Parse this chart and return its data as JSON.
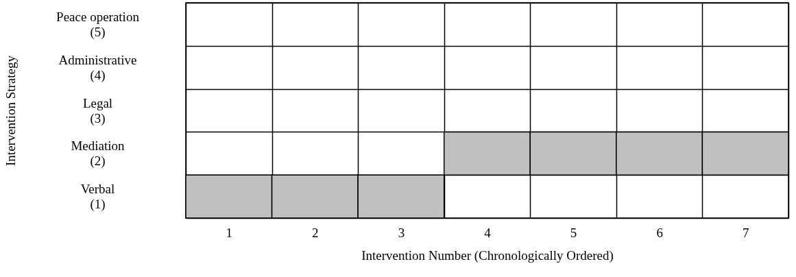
{
  "chart_data": {
    "type": "bar",
    "xlabel": "Intervention Number (Chronologically Ordered)",
    "ylabel": "Intervention Strategy",
    "categories": [
      "1",
      "2",
      "3",
      "4",
      "5",
      "6",
      "7"
    ],
    "values": [
      1,
      1,
      1,
      1,
      1,
      1,
      1
    ],
    "base": [
      0.5,
      0.5,
      0.5,
      1.5,
      1.5,
      1.5,
      1.5
    ],
    "color": "#c0c0c0",
    "ylim": [
      0.5,
      5.5
    ],
    "yticks": [
      {
        "value": 0.5,
        "label": null
      },
      {
        "value": 1,
        "label": "Verbal (1)"
      },
      {
        "value": 1.5,
        "label": null
      },
      {
        "value": 2,
        "label": "Mediation (2)"
      },
      {
        "value": 2.5,
        "label": null
      },
      {
        "value": 3,
        "label": "Legal (3)"
      },
      {
        "value": 3.5,
        "label": null
      },
      {
        "value": 4,
        "label": "Administrative (4)"
      },
      {
        "value": 4.5,
        "label": null
      },
      {
        "value": 5,
        "label": "Peace operation (5)"
      },
      {
        "value": 5.5,
        "label": null
      }
    ],
    "grid": true
  }
}
